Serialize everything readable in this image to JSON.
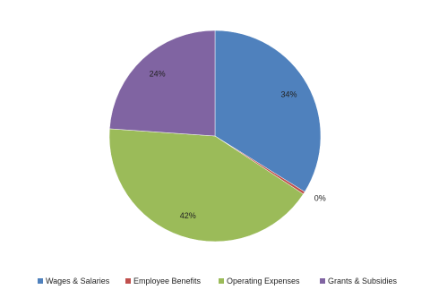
{
  "chart_data": {
    "type": "pie",
    "categories": [
      "Wages & Salaries",
      "Employee Benefits",
      "Operating Expenses",
      "Grants & Subsidies"
    ],
    "values": [
      34,
      0.4,
      42,
      24
    ],
    "value_labels": [
      "34%",
      "0%",
      "42%",
      "24%"
    ],
    "colors": [
      "#4f81bd",
      "#c0504d",
      "#9bbb59",
      "#8064a2"
    ],
    "legend": "bottom"
  }
}
